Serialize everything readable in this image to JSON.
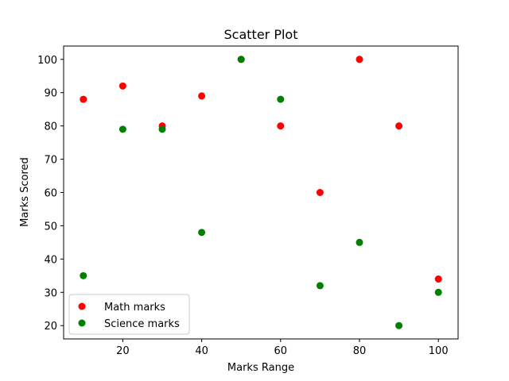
{
  "chart_data": {
    "type": "scatter",
    "title": "Scatter Plot",
    "xlabel": "Marks Range",
    "ylabel": "Marks Scored",
    "xlim": [
      5,
      105
    ],
    "ylim": [
      16,
      104
    ],
    "xticks": [
      20,
      40,
      60,
      80,
      100
    ],
    "yticks": [
      20,
      30,
      40,
      50,
      60,
      70,
      80,
      90,
      100
    ],
    "grid": false,
    "legend_position": "lower-left",
    "series": [
      {
        "name": "Math marks",
        "color": "#ff0000",
        "x": [
          10,
          20,
          30,
          40,
          50,
          60,
          70,
          80,
          90,
          100
        ],
        "y": [
          88,
          92,
          80,
          89,
          100,
          80,
          60,
          100,
          80,
          34
        ]
      },
      {
        "name": "Science marks",
        "color": "#008000",
        "x": [
          10,
          20,
          30,
          40,
          50,
          60,
          70,
          80,
          90,
          100
        ],
        "y": [
          35,
          79,
          79,
          48,
          100,
          88,
          32,
          45,
          20,
          30
        ]
      }
    ]
  }
}
